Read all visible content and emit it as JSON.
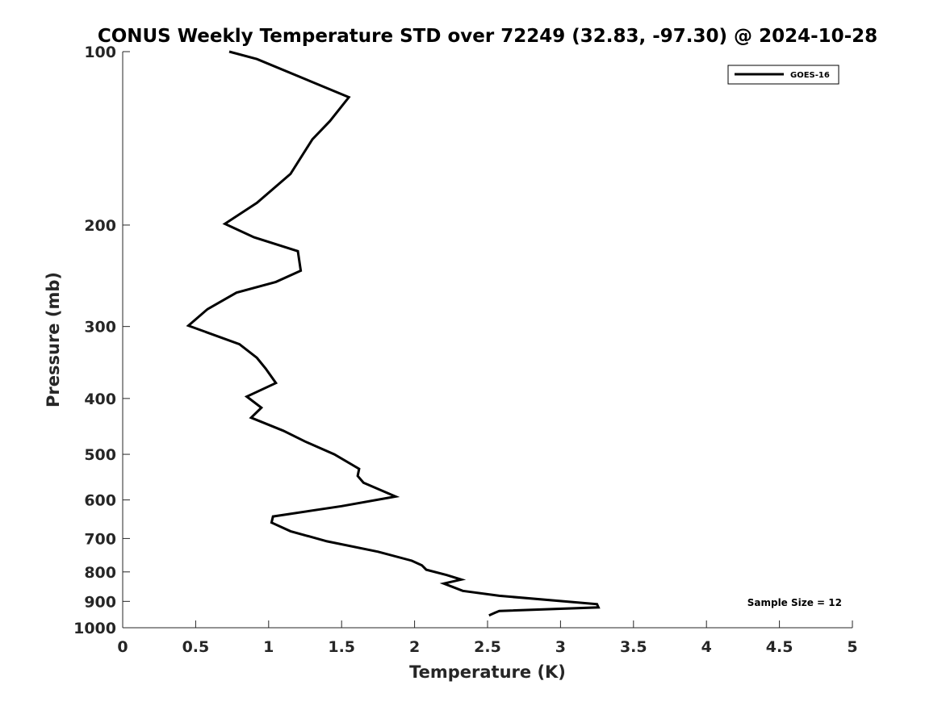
{
  "chart_data": {
    "type": "line",
    "title": "CONUS Weekly Temperature STD over 72249 (32.83, -97.30) @ 2024-10-28",
    "xlabel": "Temperature (K)",
    "ylabel": "Pressure (mb)",
    "xlim": [
      0,
      5
    ],
    "ylim": [
      100,
      1000
    ],
    "y_scale": "log",
    "y_reversed": true,
    "grid": false,
    "legend_position": "top-right",
    "x_ticks": [
      "0",
      "0.5",
      "1",
      "1.5",
      "2",
      "2.5",
      "3",
      "3.5",
      "4",
      "4.5",
      "5"
    ],
    "y_ticks": [
      "100",
      "200",
      "300",
      "400",
      "500",
      "600",
      "700",
      "800",
      "900",
      "1000"
    ],
    "annotation": "Sample Size = 12",
    "series": [
      {
        "name": "GOES-16",
        "color": "#000000",
        "points": [
          [
            0.73,
            100
          ],
          [
            0.92,
            103
          ],
          [
            1.55,
            120
          ],
          [
            1.42,
            132
          ],
          [
            1.3,
            142
          ],
          [
            1.15,
            163
          ],
          [
            0.92,
            183
          ],
          [
            0.7,
            199
          ],
          [
            0.9,
            210
          ],
          [
            1.2,
            222
          ],
          [
            1.22,
            240
          ],
          [
            1.05,
            251
          ],
          [
            0.78,
            262
          ],
          [
            0.58,
            280
          ],
          [
            0.45,
            299
          ],
          [
            0.8,
            322
          ],
          [
            0.92,
            340
          ],
          [
            0.98,
            355
          ],
          [
            1.05,
            376
          ],
          [
            0.85,
            397
          ],
          [
            0.95,
            415
          ],
          [
            0.88,
            432
          ],
          [
            1.1,
            455
          ],
          [
            1.25,
            475
          ],
          [
            1.45,
            500
          ],
          [
            1.62,
            530
          ],
          [
            1.61,
            545
          ],
          [
            1.65,
            560
          ],
          [
            1.87,
            592
          ],
          [
            1.5,
            615
          ],
          [
            1.03,
            641
          ],
          [
            1.02,
            657
          ],
          [
            1.15,
            680
          ],
          [
            1.4,
            708
          ],
          [
            1.75,
            738
          ],
          [
            1.98,
            765
          ],
          [
            2.05,
            779
          ],
          [
            2.08,
            793
          ],
          [
            2.22,
            810
          ],
          [
            2.32,
            825
          ],
          [
            2.2,
            838
          ],
          [
            2.33,
            863
          ],
          [
            2.58,
            880
          ],
          [
            3.25,
            910
          ],
          [
            3.26,
            922
          ],
          [
            2.58,
            935
          ],
          [
            2.55,
            942
          ],
          [
            2.51,
            952
          ]
        ]
      }
    ]
  }
}
